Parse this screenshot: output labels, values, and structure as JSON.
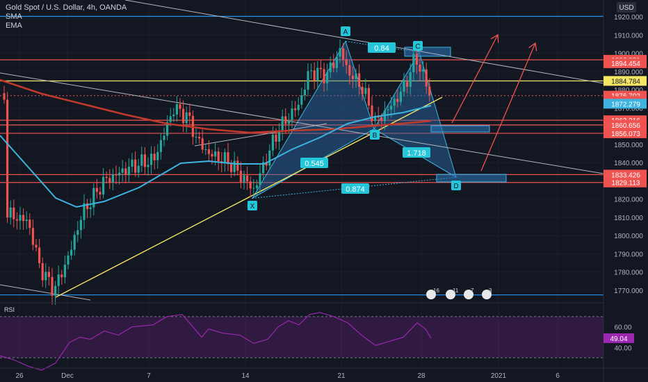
{
  "header": {
    "symbol": "Gold Spot / U.S. Dollar, 4h, OANDA",
    "indicators": [
      "SMA",
      "EMA"
    ],
    "currency_button": "USD"
  },
  "colors": {
    "background": "#131722",
    "grid": "#2a2e39",
    "candle_up": "#26a69a",
    "candle_down": "#ef5350",
    "sma": "#c0392b",
    "ema": "#3db4e0",
    "trendline": "#f5e663",
    "harmonic_fill": "#2a6fb0",
    "rsi": "#9c27b0",
    "label_bg": "#2196f3",
    "pattern_label": "#26c6da"
  },
  "chart_data": {
    "type": "candlestick",
    "y_axis": {
      "ticks": [
        "1920.000",
        "1910.000",
        "1900.000",
        "1890.000",
        "1880.000",
        "1870.000",
        "1860.000",
        "1850.000",
        "1840.000",
        "1830.000",
        "1820.000",
        "1810.000",
        "1800.000",
        "1790.000",
        "1780.000",
        "1770.000"
      ],
      "range": [
        1765,
        1925
      ]
    },
    "x_axis": {
      "labels": [
        "26",
        "Dec",
        "7",
        "14",
        "21",
        "28",
        "2021",
        "6"
      ]
    },
    "price_labels": [
      {
        "text": "1896.351",
        "value": 1896.351,
        "color": "#ef5350"
      },
      {
        "text": "1894.454",
        "value": 1894.454,
        "color": "#ef5350"
      },
      {
        "text": "1884.784",
        "value": 1884.784,
        "color": "#f5e663"
      },
      {
        "text": "1876.702",
        "value": 1876.702,
        "color": "#ef5350"
      },
      {
        "text": "00:05",
        "value": 1873.8,
        "color": "#ef5350"
      },
      {
        "text": "1872.279",
        "value": 1872.279,
        "color": "#3db4e0"
      },
      {
        "text": "1863.216",
        "value": 1863.216,
        "color": "#ef5350"
      },
      {
        "text": "1860.656",
        "value": 1860.656,
        "color": "#ef5350"
      },
      {
        "text": "1856.073",
        "value": 1856.073,
        "color": "#ef5350"
      },
      {
        "text": "1833.426",
        "value": 1833.426,
        "color": "#ef5350"
      },
      {
        "text": "1829.113",
        "value": 1829.113,
        "color": "#ef5350"
      }
    ],
    "pattern_points": [
      {
        "label": "X",
        "price": 1820.5
      },
      {
        "label": "A",
        "price": 1906.5
      },
      {
        "label": "B",
        "price": 1858.5
      },
      {
        "label": "C",
        "price": 1900.5
      },
      {
        "label": "D",
        "price": 1832.0
      }
    ],
    "ratios": [
      "0.545",
      "0.84",
      "1.718",
      "0.874"
    ],
    "rsi": {
      "label": "RSI",
      "value": "49.04",
      "ticks": [
        "60.00",
        "40.00"
      ],
      "range": [
        20,
        80
      ],
      "band": [
        70,
        30
      ]
    }
  }
}
